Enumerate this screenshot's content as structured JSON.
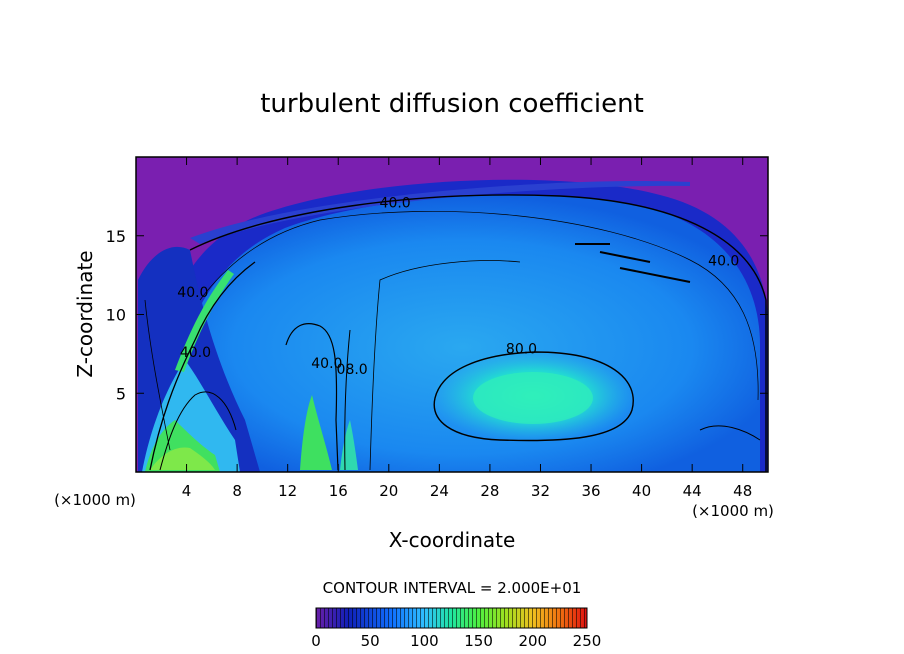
{
  "chart_data": {
    "type": "heatmap",
    "title": "turbulent diffusion coefficient",
    "xlabel": "X-coordinate",
    "ylabel": "Z-coordinate",
    "x_units": "(×1000 m)",
    "xlim": [
      0,
      50
    ],
    "ylim": [
      0,
      20
    ],
    "x_ticks": [
      4,
      8,
      12,
      16,
      20,
      24,
      28,
      32,
      36,
      40,
      44,
      48
    ],
    "y_ticks": [
      5,
      10,
      15
    ],
    "contour_interval_label": "CONTOUR INTERVAL = 2.000E+01",
    "contour_interval": 20,
    "contour_labels": [
      {
        "text": "80.0",
        "x": 30.5,
        "y": 7.7
      },
      {
        "text": "40.0",
        "x": 46.5,
        "y": 13.3
      },
      {
        "text": "40.0",
        "x": 20.5,
        "y": 17.0
      },
      {
        "text": "40.0",
        "x": 15.1,
        "y": 6.8
      },
      {
        "text": "08.0",
        "x": 17.1,
        "y": 6.4
      },
      {
        "text": "40.0",
        "x": 4.5,
        "y": 11.3
      },
      {
        "text": "40.0",
        "x": 4.7,
        "y": 7.5
      }
    ],
    "colorbar": {
      "min": 0,
      "max": 250,
      "ticks": [
        0,
        50,
        100,
        150,
        200,
        250
      ],
      "colors": [
        "#6a1fa8",
        "#1020b8",
        "#1070ff",
        "#30c0ff",
        "#20e6a0",
        "#4ef040",
        "#a0e020",
        "#f0c020",
        "#f07010",
        "#e01010"
      ]
    }
  }
}
